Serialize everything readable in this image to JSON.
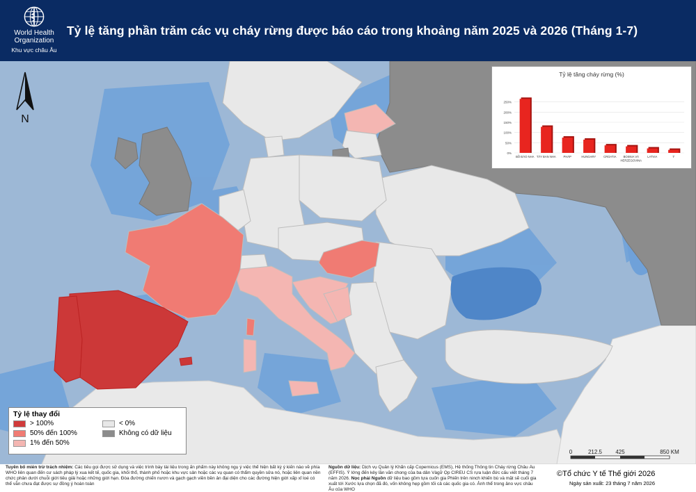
{
  "header": {
    "org_name_line1": "World Health",
    "org_name_line2": "Organization",
    "region": "Khu vực châu Âu",
    "title": "Tỷ lệ tăng phần trăm các vụ cháy rừng được báo cáo trong khoảng năm 2025 và 2026 (Tháng 1-7)"
  },
  "north_arrow": {
    "label": "N"
  },
  "chart_data": {
    "type": "bar",
    "title": "Tỷ lệ tăng cháy rừng (%)",
    "categories": [
      "BỒ ĐÀO NHA",
      "TÂY BAN NHA",
      "PHÁP",
      "HUNGARY",
      "CROATIA",
      "BOSNIA VÀ HERZEGOVINA",
      "LATVIA",
      "Ý"
    ],
    "values": [
      265,
      128,
      75,
      65,
      37,
      32,
      22,
      15
    ],
    "y_ticks": [
      "0%",
      "50%",
      "100%",
      "150%",
      "200%",
      "250%"
    ],
    "ylim": [
      0,
      300
    ],
    "grid": true,
    "bar_color": "#e8251f"
  },
  "legend": {
    "title": "Tỷ lệ thay đổi",
    "items": [
      {
        "label": "> 100%",
        "color": "#d13b3b"
      },
      {
        "label": "50% đến 100%",
        "color": "#f07b73"
      },
      {
        "label": "1% đến 50%",
        "color": "#f4b6b2"
      },
      {
        "label": "< 0%",
        "color": "#e8e8e8"
      },
      {
        "label": "Không có dữ liệu",
        "color": "#8c8c8c"
      }
    ]
  },
  "scale_bar": {
    "ticks": [
      "0",
      "212.5",
      "425",
      "850 KM"
    ]
  },
  "footer": {
    "disclaimer_head": "Tuyên bố miễn trừ trách nhiệm:",
    "disclaimer_body": "Các tiêu gọi được sử dụng và việc trình bày tài liệu trong ấn phẩm này không ngụ ý việc thể hiện bất kỳ ý kiến nào về phía WHO liên quan đến cư sách pháp lý xua kết tế, quốc gia, khối thổ, thành phố hoặc khu vực sản hoặc các vụ quan có thẩm quyền sửa nó, hoặc liên quan nền chức phân dưới chuỗi giới tiêu giải hoặc những giới hạn. Đòa đường chiến nươn và gạch gạch viền bền ản đại diện cho các đường hiện giới xấp xỉ loé có thể vẫn chưa đạt được sự đồng ý hoàn toàn",
    "source_head": "Nguồn dữ liệu:",
    "source_body": "Dịch vụ Quản lý Khẩn cấp Copernicus (EMS), Hệ thống Thông tin Cháy rừng Châu Âu (EFFIS). Ý lớng đến kẻy lần văn chong của ba dân Vàgữ Ọp CIREU CS rựa luận đức cấu viết tháng 7 năm 2026.",
    "note_head": "Nọc phải Nguồn",
    "note_body": "dữ liệu bao gồm tựa cuốn gia Phiến trên ninch khiến bù và mặt sẽ cuối gia xuất tới Xước lựa chọn đã đó, vốn không hẹp gồm tối cả các quốc gia có. Ảnh thể trong âno vực châu Âu của WHO",
    "copyright": "©Tổ chức Y tế Thế giới 2026",
    "production_date": "Ngày sản xuất: 23 tháng 7 năm 2026"
  }
}
